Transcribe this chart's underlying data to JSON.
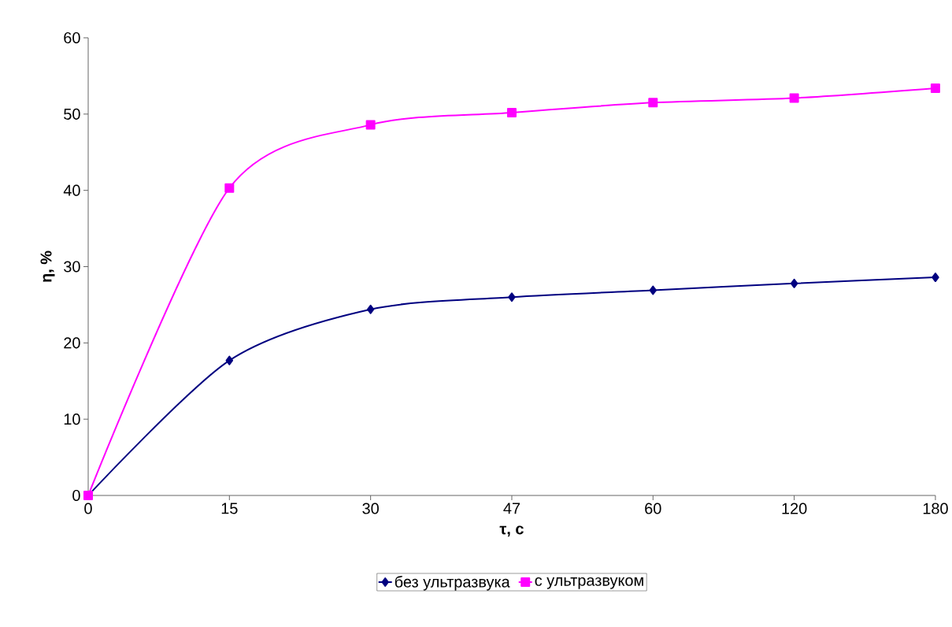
{
  "chart_data": {
    "type": "line",
    "xlabel": "τ, с",
    "ylabel": "η, %",
    "categories": [
      "0",
      "15",
      "30",
      "47",
      "60",
      "120",
      "180"
    ],
    "series": [
      {
        "name": "без ультразвука",
        "color": "#000080",
        "marker": "diamond",
        "values": [
          0,
          17.7,
          24.4,
          26.0,
          26.9,
          27.8,
          28.6
        ]
      },
      {
        "name": "с ультразвуком",
        "color": "#ff00ff",
        "marker": "square",
        "values": [
          0,
          40.3,
          48.6,
          50.2,
          51.5,
          52.1,
          53.4
        ]
      }
    ],
    "ylim": [
      0,
      60
    ],
    "yticks": [
      0,
      10,
      20,
      30,
      40,
      50,
      60
    ],
    "grid": false,
    "legend": "bottom",
    "line_style": "solid"
  }
}
